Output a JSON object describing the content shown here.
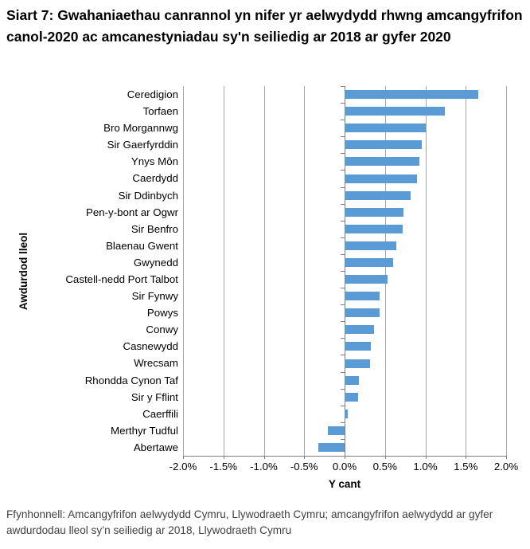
{
  "title": "Siart 7: Gwahaniaethau canrannol yn nifer yr aelwydydd rhwng amcangyfrifon canol-2020 ac amcanestyniadau sy'n seiliedig ar 2018 ar gyfer 2020",
  "footer": "Ffynhonnell: Amcangyfrifon aelwydydd Cymru, Llywodraeth Cymru; amcangyfrifon aelwydydd ar gyfer awdurdodau lleol sy’n seiliedig ar 2018, Llywodraeth Cymru",
  "chart_data": {
    "type": "bar",
    "orientation": "horizontal",
    "title": "Siart 7: Gwahaniaethau canrannol yn nifer yr aelwydydd rhwng amcangyfrifon canol-2020 ac amcanestyniadau sy'n seiliedig ar 2018 ar gyfer 2020",
    "xlabel": "Y cant",
    "ylabel": "Awdurdod lleol",
    "xlim": [
      -2.0,
      2.0
    ],
    "xtick_labels": [
      "-2.0%",
      "-1.5%",
      "-1.0%",
      "-0.5%",
      "0.0%",
      "0.5%",
      "1.0%",
      "1.5%",
      "2.0%"
    ],
    "xtick_values": [
      -2.0,
      -1.5,
      -1.0,
      -0.5,
      0.0,
      0.5,
      1.0,
      1.5,
      2.0
    ],
    "grid": "vertical-gridlines-on",
    "legend": "none",
    "bar_color": "#5b9bd5",
    "gridline_color": "#a6a6a6",
    "axis_color": "#7f7f7f",
    "categories": [
      "Ceredigion",
      "Torfaen",
      "Bro Morgannwg",
      "Sir Gaerfyrddin",
      "Ynys Môn",
      "Caerdydd",
      "Sir Ddinbych",
      "Pen-y-bont ar Ogwr",
      "Sir Benfro",
      "Blaenau Gwent",
      "Gwynedd",
      "Castell-nedd Port Talbot",
      "Sir Fynwy",
      "Powys",
      "Conwy",
      "Casnewydd",
      "Wrecsam",
      "Rhondda Cynon Taf",
      "Sir y Fflint",
      "Caerffili",
      "Merthyr Tudful",
      "Abertawe"
    ],
    "values": [
      1.66,
      1.24,
      1.0,
      0.96,
      0.93,
      0.9,
      0.82,
      0.73,
      0.72,
      0.64,
      0.6,
      0.53,
      0.43,
      0.43,
      0.36,
      0.33,
      0.32,
      0.18,
      0.17,
      0.04,
      -0.21,
      -0.33
    ]
  }
}
